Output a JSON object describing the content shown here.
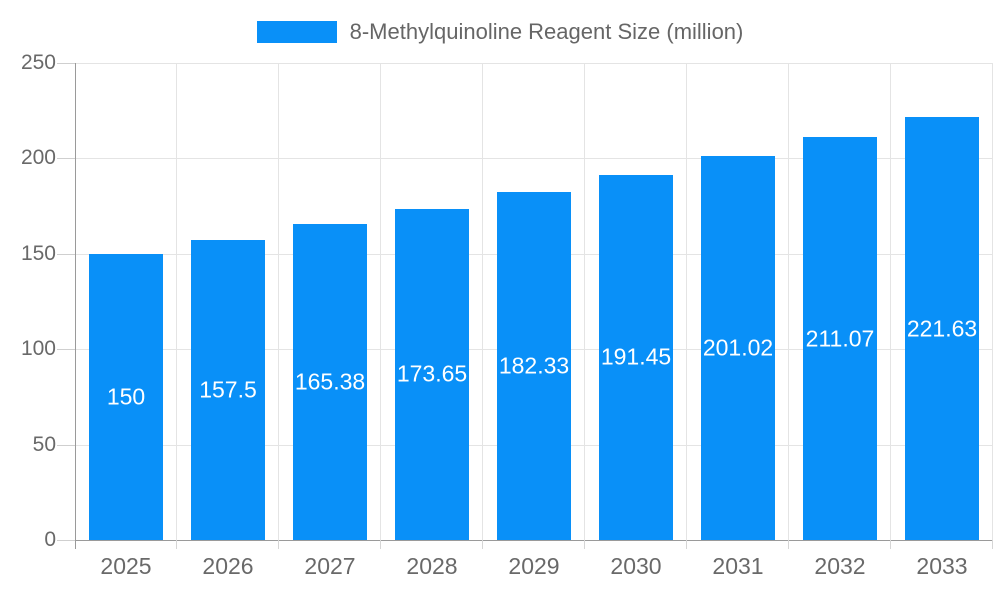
{
  "chart_data": {
    "type": "bar",
    "title": "",
    "legend_entries": [
      "8-Methylquinoline Reagent Size (million)"
    ],
    "legend_position": "top-center",
    "categories": [
      "2025",
      "2026",
      "2027",
      "2028",
      "2029",
      "2030",
      "2031",
      "2032",
      "2033"
    ],
    "series": [
      {
        "name": "8-Methylquinoline Reagent Size (million)",
        "values": [
          150,
          157.5,
          165.38,
          173.65,
          182.33,
          191.45,
          201.02,
          211.07,
          221.63
        ],
        "value_labels": [
          "150",
          "157.5",
          "165.38",
          "173.65",
          "182.33",
          "191.45",
          "201.02",
          "211.07",
          "221.63"
        ]
      }
    ],
    "xlabel": "",
    "ylabel": "",
    "ylim": [
      0,
      250
    ],
    "yticks": [
      0,
      50,
      100,
      150,
      200,
      250
    ],
    "ytick_labels": [
      "0",
      "50",
      "100",
      "150",
      "200",
      "250"
    ],
    "grid": true,
    "value_labels_position": "inside-center"
  },
  "colors": {
    "bar": "#0990F8",
    "bar_value_label": "#ffffff",
    "axis_line": "#9a9a9a",
    "gridline": "#e4e4e4",
    "tick": "#cfcfcf",
    "tick_label": "#696969",
    "legend_text": "#666666",
    "background": "#ffffff"
  }
}
